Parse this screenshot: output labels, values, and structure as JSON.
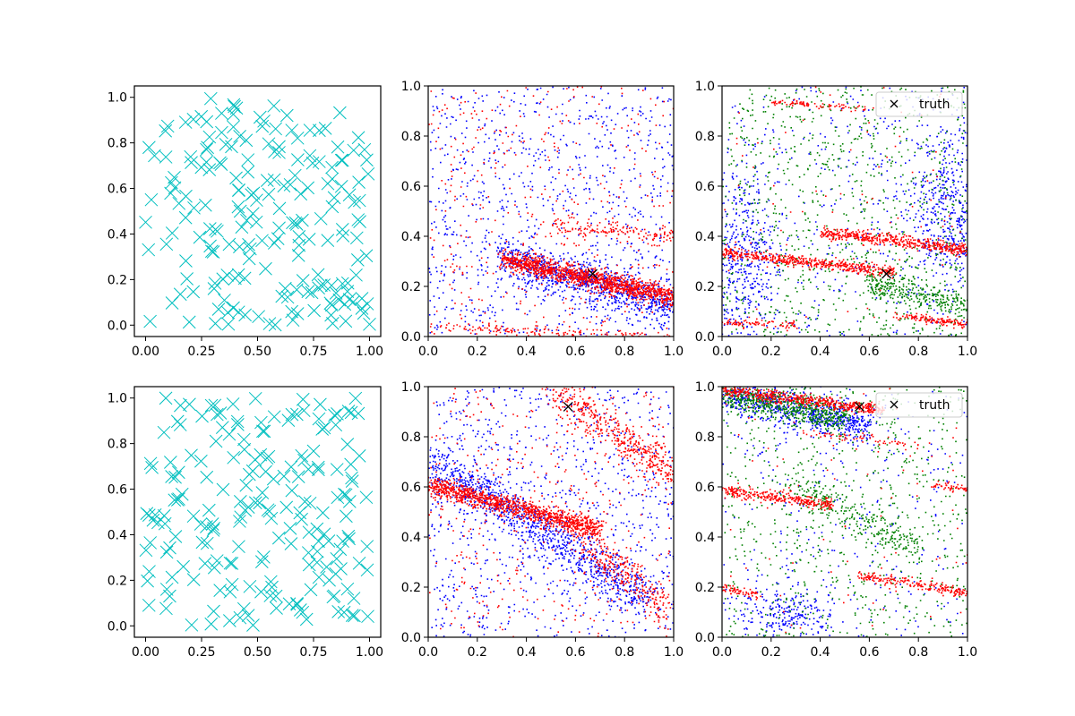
{
  "figure": {
    "background": "#ffffff"
  },
  "chart_data": [
    {
      "panel": "top-left",
      "type": "scatter",
      "xlim": [
        -0.05,
        1.05
      ],
      "ylim": [
        -0.05,
        1.05
      ],
      "xticks": [
        "0.00",
        "0.25",
        "0.50",
        "0.75",
        "1.00"
      ],
      "yticks": [
        "0.0",
        "0.2",
        "0.4",
        "0.6",
        "0.8",
        "1.0"
      ],
      "grid": false,
      "marker": "x",
      "color": "#00bfbf",
      "points": {
        "count": 200,
        "distribution": "uniform",
        "x_range": [
          0,
          1
        ],
        "y_range": [
          0,
          1
        ]
      }
    },
    {
      "panel": "top-center",
      "type": "scatter",
      "xlim": [
        0,
        1
      ],
      "ylim": [
        0,
        1
      ],
      "xticks": [
        "0.0",
        "0.2",
        "0.4",
        "0.6",
        "0.8",
        "1.0"
      ],
      "yticks": [
        "0.0",
        "0.2",
        "0.4",
        "0.6",
        "0.8",
        "1.0"
      ],
      "grid": false,
      "series": [
        {
          "color": "#0000ff",
          "bands": [
            {
              "x": [
                0.3,
                1.0
              ],
              "y": [
                0.32,
                0.12
              ],
              "spread": 0.04,
              "n": 900
            }
          ],
          "noise": 900
        },
        {
          "color": "#ff0000",
          "bands": [
            {
              "x": [
                0.3,
                1.0
              ],
              "y": [
                0.31,
                0.16
              ],
              "spread": 0.02,
              "n": 1300
            },
            {
              "x": [
                0.5,
                1.0
              ],
              "y": [
                0.45,
                0.4
              ],
              "spread": 0.02,
              "n": 150
            },
            {
              "x": [
                0.0,
                1.0
              ],
              "y": [
                0.04,
                0.0
              ],
              "spread": 0.01,
              "n": 150
            }
          ],
          "noise": 400
        }
      ],
      "truth": {
        "x": 0.67,
        "y": 0.25
      }
    },
    {
      "panel": "top-right",
      "type": "scatter",
      "xlim": [
        0,
        1
      ],
      "ylim": [
        0,
        1
      ],
      "xticks": [
        "0.0",
        "0.2",
        "0.4",
        "0.6",
        "0.8",
        "1.0"
      ],
      "yticks": [
        "0.0",
        "0.2",
        "0.4",
        "0.6",
        "0.8",
        "1.0"
      ],
      "grid": false,
      "series": [
        {
          "color": "#0000ff",
          "blobs": [
            {
              "cx": 0.07,
              "cy": 0.3,
              "sx": 0.08,
              "sy": 0.18,
              "n": 500
            },
            {
              "cx": 0.92,
              "cy": 0.5,
              "sx": 0.08,
              "sy": 0.18,
              "n": 500
            }
          ],
          "noise": 400
        },
        {
          "color": "#008000",
          "bands": [
            {
              "x": [
                0.6,
                1.0
              ],
              "y": [
                0.22,
                0.12
              ],
              "spread": 0.03,
              "n": 300
            }
          ],
          "noise": 900
        },
        {
          "color": "#ff0000",
          "bands": [
            {
              "x": [
                0.0,
                0.7
              ],
              "y": [
                0.34,
                0.26
              ],
              "spread": 0.012,
              "n": 500
            },
            {
              "x": [
                0.4,
                1.0
              ],
              "y": [
                0.42,
                0.35
              ],
              "spread": 0.012,
              "n": 500
            },
            {
              "x": [
                0.0,
                0.3
              ],
              "y": [
                0.06,
                0.05
              ],
              "spread": 0.008,
              "n": 80
            },
            {
              "x": [
                0.7,
                1.0
              ],
              "y": [
                0.09,
                0.05
              ],
              "spread": 0.008,
              "n": 140
            },
            {
              "x": [
                0.2,
                0.6
              ],
              "y": [
                0.94,
                0.91
              ],
              "spread": 0.006,
              "n": 80
            }
          ],
          "noise": 80
        }
      ],
      "truth": {
        "x": 0.67,
        "y": 0.25
      },
      "legend": {
        "label": "truth",
        "position": "top-right"
      }
    },
    {
      "panel": "bottom-left",
      "type": "scatter",
      "xlim": [
        -0.05,
        1.05
      ],
      "ylim": [
        -0.05,
        1.05
      ],
      "xticks": [
        "0.00",
        "0.25",
        "0.50",
        "0.75",
        "1.00"
      ],
      "yticks": [
        "0.0",
        "0.2",
        "0.4",
        "0.6",
        "0.8",
        "1.0"
      ],
      "grid": false,
      "marker": "x",
      "color": "#00bfbf",
      "points": {
        "count": 200,
        "distribution": "uniform",
        "x_range": [
          0,
          1
        ],
        "y_range": [
          0,
          1
        ]
      }
    },
    {
      "panel": "bottom-center",
      "type": "scatter",
      "xlim": [
        0,
        1
      ],
      "ylim": [
        0,
        1
      ],
      "xticks": [
        "0.0",
        "0.2",
        "0.4",
        "0.6",
        "0.8",
        "1.0"
      ],
      "yticks": [
        "0.0",
        "0.2",
        "0.4",
        "0.6",
        "0.8",
        "1.0"
      ],
      "grid": false,
      "series": [
        {
          "color": "#0000ff",
          "bands": [
            {
              "x": [
                0.0,
                0.9
              ],
              "y": [
                0.7,
                0.15
              ],
              "spread": 0.05,
              "n": 1000
            }
          ],
          "noise": 900
        },
        {
          "color": "#ff0000",
          "bands": [
            {
              "x": [
                0.0,
                0.7
              ],
              "y": [
                0.61,
                0.43
              ],
              "spread": 0.02,
              "n": 1100
            },
            {
              "x": [
                0.5,
                1.0
              ],
              "y": [
                0.99,
                0.65
              ],
              "spread": 0.04,
              "n": 450
            },
            {
              "x": [
                0.6,
                1.0
              ],
              "y": [
                0.4,
                0.1
              ],
              "spread": 0.04,
              "n": 300
            }
          ],
          "noise": 400
        }
      ],
      "truth": {
        "x": 0.57,
        "y": 0.92
      }
    },
    {
      "panel": "bottom-right",
      "type": "scatter",
      "xlim": [
        0,
        1
      ],
      "ylim": [
        0,
        1
      ],
      "xticks": [
        "0.0",
        "0.2",
        "0.4",
        "0.6",
        "0.8",
        "1.0"
      ],
      "yticks": [
        "0.0",
        "0.2",
        "0.4",
        "0.6",
        "0.8",
        "1.0"
      ],
      "grid": false,
      "series": [
        {
          "color": "#0000ff",
          "bands": [
            {
              "x": [
                0.0,
                0.6
              ],
              "y": [
                0.98,
                0.84
              ],
              "spread": 0.04,
              "n": 700
            }
          ],
          "blobs": [
            {
              "cx": 0.25,
              "cy": 0.1,
              "sx": 0.12,
              "sy": 0.05,
              "n": 250
            }
          ],
          "noise": 300
        },
        {
          "color": "#008000",
          "bands": [
            {
              "x": [
                0.0,
                0.5
              ],
              "y": [
                0.97,
                0.88
              ],
              "spread": 0.03,
              "n": 600
            },
            {
              "x": [
                0.3,
                0.8
              ],
              "y": [
                0.6,
                0.35
              ],
              "spread": 0.04,
              "n": 300
            }
          ],
          "noise": 700
        },
        {
          "color": "#ff0000",
          "bands": [
            {
              "x": [
                0.0,
                0.65
              ],
              "y": [
                0.99,
                0.91
              ],
              "spread": 0.012,
              "n": 500
            },
            {
              "x": [
                0.0,
                0.45
              ],
              "y": [
                0.59,
                0.53
              ],
              "spread": 0.012,
              "n": 300
            },
            {
              "x": [
                0.85,
                1.0
              ],
              "y": [
                0.61,
                0.59
              ],
              "spread": 0.008,
              "n": 50
            },
            {
              "x": [
                0.55,
                1.0
              ],
              "y": [
                0.25,
                0.18
              ],
              "spread": 0.01,
              "n": 200
            },
            {
              "x": [
                0.0,
                0.15
              ],
              "y": [
                0.2,
                0.17
              ],
              "spread": 0.01,
              "n": 60
            },
            {
              "x": [
                0.3,
                0.8
              ],
              "y": [
                0.82,
                0.77
              ],
              "spread": 0.008,
              "n": 60
            }
          ],
          "noise": 80
        }
      ],
      "truth": {
        "x": 0.56,
        "y": 0.92
      },
      "legend": {
        "label": "truth",
        "position": "top-right"
      }
    }
  ]
}
